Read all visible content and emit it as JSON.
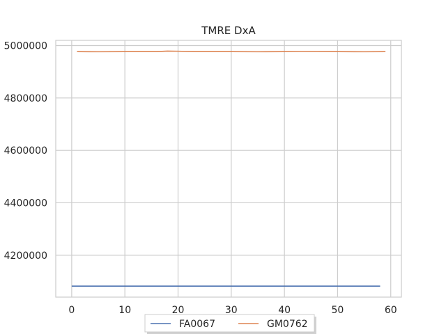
{
  "chart_data": {
    "type": "line",
    "title": "TMRE DxA",
    "xlabel": "",
    "ylabel": "",
    "xlim": [
      -3,
      62
    ],
    "ylim": [
      4040000,
      5020000
    ],
    "xticks": [
      0,
      10,
      20,
      30,
      40,
      50,
      60
    ],
    "xtick_labels": [
      "0",
      "10",
      "20",
      "30",
      "40",
      "50",
      "60"
    ],
    "yticks": [
      4200000,
      4400000,
      4600000,
      4800000,
      5000000
    ],
    "ytick_labels": [
      "4200000",
      "4400000",
      "4600000",
      "4800000",
      "5000000"
    ],
    "grid": true,
    "legend_position": "bottom-center",
    "series": [
      {
        "name": "FA0067",
        "color": "#4c72b0",
        "x": [
          0,
          10,
          20,
          30,
          40,
          50,
          58
        ],
        "y": [
          4082000,
          4082000,
          4082000,
          4082000,
          4082000,
          4082000,
          4082000
        ]
      },
      {
        "name": "GM0762",
        "color": "#dd8452",
        "x": [
          1,
          5,
          10,
          16,
          18,
          20,
          23,
          30,
          35,
          40,
          43,
          50,
          55,
          59
        ],
        "y": [
          4977000,
          4976500,
          4977000,
          4977000,
          4979000,
          4978500,
          4977000,
          4977000,
          4976500,
          4977000,
          4977500,
          4977000,
          4976500,
          4977000
        ]
      }
    ]
  }
}
